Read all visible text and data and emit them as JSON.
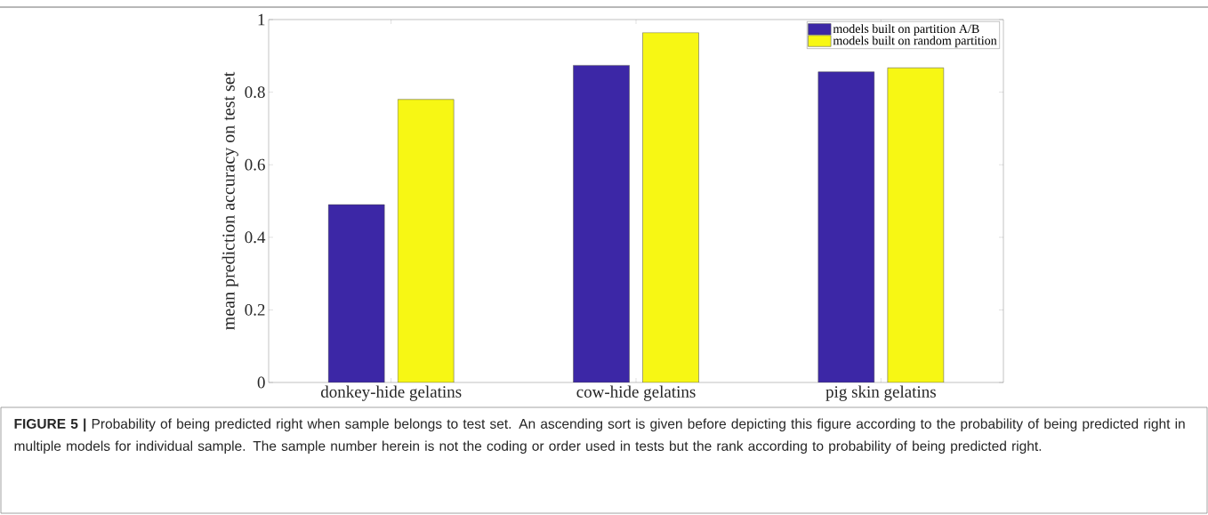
{
  "chart_data": {
    "type": "bar",
    "ylabel": "mean prediction accuracy on test set",
    "categories": [
      "donkey-hide gelatins",
      "cow-hide gelatins",
      "pig skin gelatins"
    ],
    "series": [
      {
        "name": "models built on partition A/B",
        "color": "#3c27a6",
        "values": [
          0.49,
          0.874,
          0.856
        ]
      },
      {
        "name": "models built on random partition",
        "color": "#f7f714",
        "values": [
          0.78,
          0.964,
          0.867
        ]
      }
    ],
    "ylim": [
      0,
      1
    ],
    "yticks": [
      0,
      0.2,
      0.4,
      0.6,
      0.8,
      1
    ],
    "legend": "top right",
    "annotations": [
      "**FIGURE 5 |** Probability of being predicted right when sample belongs to test set. An ascending sort is given before depicting this figure according to the probability of being predicted right in multiple models for individual sample. The sample number herein is not the coding or order used in tests but the rank according to probability of being predicted right."
    ]
  }
}
